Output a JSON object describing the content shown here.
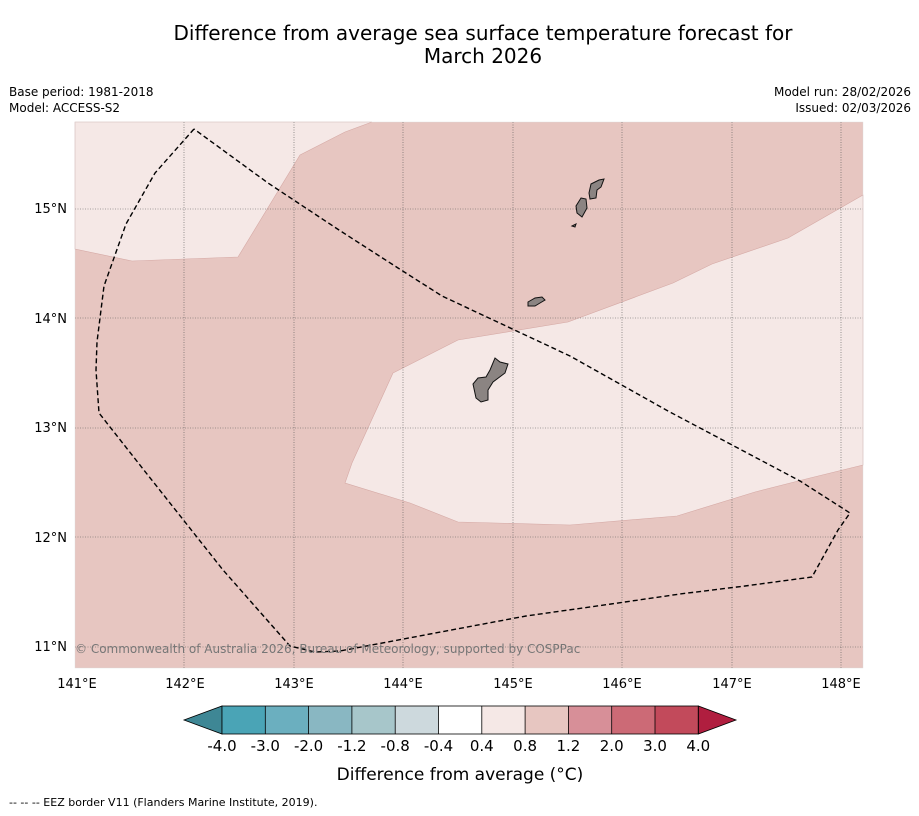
{
  "title": {
    "line1": "Difference from average sea surface temperature forecast for",
    "line2": "March 2026"
  },
  "meta": {
    "base_period": "Base period: 1981-2018",
    "model": "Model: ACCESS-S2",
    "model_run": "Model run: 28/02/2026",
    "issued": "Issued: 02/03/2026"
  },
  "map": {
    "longitude_labels": [
      "141°E",
      "142°E",
      "143°E",
      "144°E",
      "145°E",
      "146°E",
      "147°E",
      "148°E"
    ],
    "latitude_labels": [
      "15°N",
      "14°N",
      "13°N",
      "12°N",
      "11°N"
    ],
    "copyright": "© Commonwealth of Australia 2026, Bureau of Meteorology, supported by COSPPac",
    "regions": [
      {
        "name": "0.8 to 1.2",
        "color": "#e7c6c1"
      },
      {
        "name": "0.4 to 0.8",
        "color": "#f5e8e6"
      }
    ],
    "land_color": "#8b8482"
  },
  "colorbar": {
    "ticks": [
      "-4.0",
      "-3.0",
      "-2.0",
      "-1.2",
      "-0.8",
      "-0.4",
      "0.4",
      "0.8",
      "1.2",
      "2.0",
      "3.0",
      "4.0"
    ],
    "low_extend_color": "#3e8795",
    "high_extend_color": "#b01e3f",
    "colors": [
      "#4aa4b6",
      "#6bafbf",
      "#89b7c2",
      "#a7c6ca",
      "#cdd9dd",
      "#ffffff",
      "#f5e8e6",
      "#e7c6c1",
      "#d78f98",
      "#cc6a76",
      "#c24a5b"
    ],
    "label": "Difference from average (°C)"
  },
  "footnote": "--  --  -- EEZ border V11 (Flanders Marine Institute, 2019)."
}
